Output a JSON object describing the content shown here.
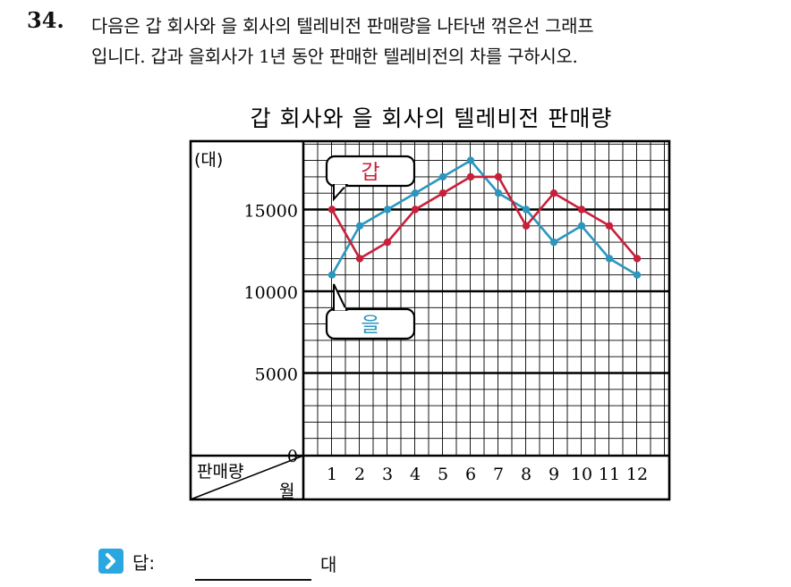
{
  "question": {
    "number": "34.",
    "line1": "다음은 갑 회사와 을 회사의 텔레비전 판매량을 나타낸 꺾은선 그래프",
    "line2": "입니다. 갑과 을회사가 1년 동안 판매한 텔레비전의 차를 구하시오."
  },
  "answer": {
    "label": "답:",
    "unit": "대",
    "icon": "chevron-right-icon"
  },
  "chart_data": {
    "type": "line",
    "title": "갑 회사와 을 회사의 텔레비전 판매량",
    "ylabel": "(대)",
    "xlabel": "월",
    "corner_label": "판매량",
    "x": [
      "1",
      "2",
      "3",
      "4",
      "5",
      "6",
      "7",
      "8",
      "9",
      "10",
      "11",
      "12"
    ],
    "y_ticks": [
      "0",
      "5000",
      "10000",
      "15000"
    ],
    "ylim": [
      0,
      19000
    ],
    "grid": true,
    "series": [
      {
        "name": "갑",
        "color": "#c8203a",
        "values": [
          15000,
          12000,
          13000,
          15000,
          16000,
          17000,
          17000,
          14000,
          16000,
          15000,
          14000,
          12000
        ]
      },
      {
        "name": "을",
        "color": "#2b97bf",
        "values": [
          11000,
          14000,
          15000,
          16000,
          17000,
          18000,
          16000,
          15000,
          13000,
          14000,
          12000,
          11000
        ]
      }
    ]
  }
}
